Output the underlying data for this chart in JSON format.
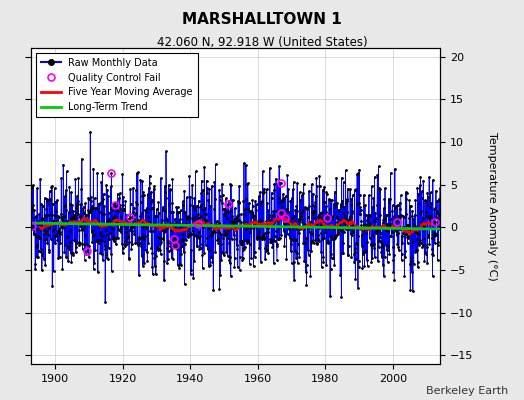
{
  "title": "MARSHALLTOWN 1",
  "subtitle": "42.060 N, 92.918 W (United States)",
  "ylabel": "Temperature Anomaly (°C)",
  "watermark": "Berkeley Earth",
  "background_color": "#e8e8e8",
  "plot_bg_color": "#ffffff",
  "ylim": [
    -16,
    21
  ],
  "yticks": [
    -15,
    -10,
    -5,
    0,
    5,
    10,
    15,
    20
  ],
  "xlim": [
    1893,
    2014
  ],
  "xticks": [
    1900,
    1920,
    1940,
    1960,
    1980,
    2000
  ],
  "year_start": 1893,
  "year_end": 2013,
  "seed": 42,
  "raw_color": "#0000ff",
  "ma_color": "#ff0000",
  "trend_color": "#00cc00",
  "qc_color": "#ff00ff",
  "grid_color": "#cccccc",
  "legend_entries": [
    "Raw Monthly Data",
    "Quality Control Fail",
    "Five Year Moving Average",
    "Long-Term Trend"
  ]
}
